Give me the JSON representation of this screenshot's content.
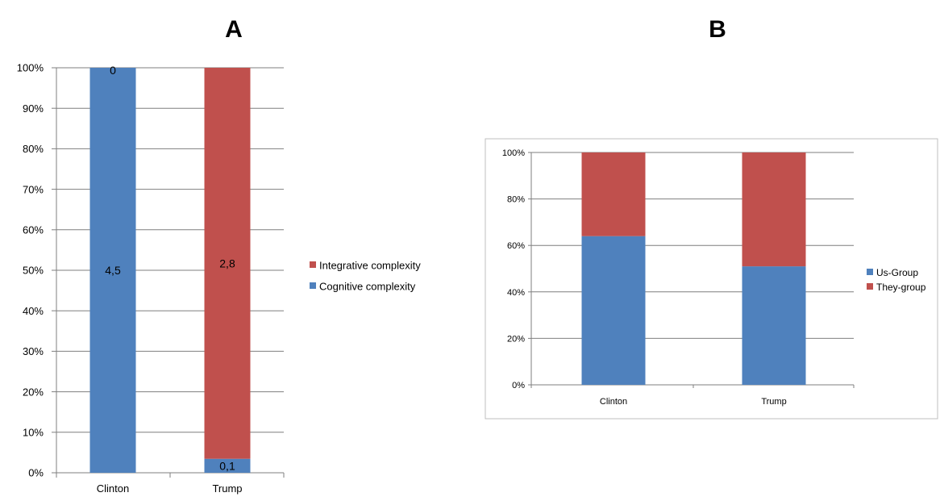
{
  "chart_data": [
    {
      "type": "bar",
      "panel_label": "A",
      "stacked": "percent",
      "categories": [
        "Clinton",
        "Trump"
      ],
      "series": [
        {
          "name": "Cognitive complexity",
          "values": [
            4.5,
            0.1
          ],
          "labels": [
            "4,5",
            "0,1"
          ],
          "color": "#4F81BD"
        },
        {
          "name": "Integrative complexity",
          "values": [
            0,
            2.8
          ],
          "labels": [
            "0",
            "2,8"
          ],
          "color": "#C0504D"
        }
      ],
      "yticks": [
        "0%",
        "10%",
        "20%",
        "30%",
        "40%",
        "50%",
        "60%",
        "70%",
        "80%",
        "90%",
        "100%"
      ],
      "ylim": [
        0,
        100
      ],
      "grid": true,
      "legend": "right",
      "frame": false
    },
    {
      "type": "bar",
      "panel_label": "B",
      "stacked": "percent",
      "categories": [
        "Clinton",
        "Trump"
      ],
      "series": [
        {
          "name": "Us-Group",
          "values": [
            64,
            51
          ],
          "color": "#4F81BD"
        },
        {
          "name": "They-group",
          "values": [
            36,
            49
          ],
          "color": "#C0504D"
        }
      ],
      "yticks": [
        "0%",
        "20%",
        "40%",
        "60%",
        "80%",
        "100%"
      ],
      "ylim": [
        0,
        100
      ],
      "grid": true,
      "legend": "right",
      "frame": true
    }
  ]
}
